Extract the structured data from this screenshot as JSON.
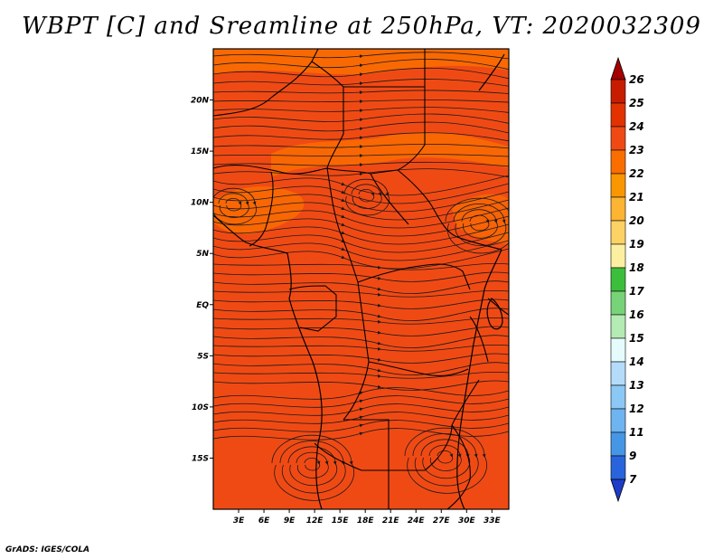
{
  "title": "WBPT [C] and Sreamline at 250hPa, VT: 2020032309",
  "credit": "GrADS: IGES/COLA",
  "map": {
    "lon_range": [
      0,
      35
    ],
    "lat_range": [
      -20,
      25
    ],
    "lon_ticks": [
      "3E",
      "6E",
      "9E",
      "12E",
      "15E",
      "18E",
      "21E",
      "24E",
      "27E",
      "30E",
      "33E"
    ],
    "lat_ticks": [
      "20N",
      "15N",
      "10N",
      "5N",
      "EQ",
      "5S",
      "10S",
      "15S"
    ],
    "background_color": "#f04a14"
  },
  "colorbar": {
    "levels": [
      "26",
      "25",
      "24",
      "23",
      "22",
      "21",
      "20",
      "19",
      "18",
      "17",
      "16",
      "15",
      "14",
      "13",
      "12",
      "11",
      "9",
      "7"
    ],
    "colors": [
      "#a50000",
      "#c81c00",
      "#e13200",
      "#f04a14",
      "#fa6e00",
      "#fa9600",
      "#fcb432",
      "#fcd264",
      "#fcf0a0",
      "#3cbe3c",
      "#78d278",
      "#b4eab4",
      "#e6fcfc",
      "#b4dcfa",
      "#8cc8f5",
      "#6eb4f0",
      "#4696e6",
      "#2864dc",
      "#1e3cc8"
    ]
  }
}
